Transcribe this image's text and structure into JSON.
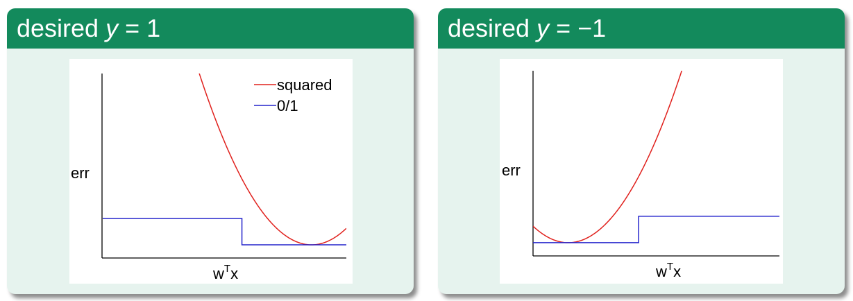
{
  "panels": [
    {
      "title_prefix": "desired ",
      "title_var": "y",
      "title_eq": " = ",
      "title_value": "1",
      "chart_data": {
        "type": "line",
        "xlabel_base": "w",
        "xlabel_sup": "T",
        "xlabel_tail": "x",
        "ylabel": "err",
        "legend": {
          "position": "top-right",
          "entries": [
            "squared",
            "0/1"
          ]
        },
        "xlim": [
          -2,
          1.5
        ],
        "ylim": [
          -0.2,
          2.6
        ],
        "series": [
          {
            "name": "squared",
            "color": "#e0201c",
            "function": "squared",
            "target": 1,
            "points": [
              [
                -0.8,
                3.24
              ],
              [
                -0.5,
                2.25
              ],
              [
                0,
                1
              ],
              [
                0.5,
                0.25
              ],
              [
                1,
                0
              ],
              [
                1.5,
                0.25
              ]
            ]
          },
          {
            "name": "0/1",
            "color": "#2424cc",
            "function": "zero_one",
            "target": 1,
            "points": [
              [
                -2,
                0.4
              ],
              [
                0,
                0.4
              ],
              [
                0,
                0
              ],
              [
                1.5,
                0
              ]
            ]
          }
        ]
      }
    },
    {
      "title_prefix": "desired ",
      "title_var": "y",
      "title_eq": " = ",
      "title_value": "−1",
      "chart_data": {
        "type": "line",
        "xlabel_base": "w",
        "xlabel_sup": "T",
        "xlabel_tail": "x",
        "ylabel": "err",
        "xlim": [
          -1.5,
          2
        ],
        "ylim": [
          -0.2,
          2.6
        ],
        "series": [
          {
            "name": "squared",
            "color": "#e0201c",
            "function": "squared",
            "target": -1,
            "points": [
              [
                -1.5,
                0.25
              ],
              [
                -1,
                0
              ],
              [
                0,
                1
              ],
              [
                0.5,
                2.25
              ],
              [
                0.8,
                3.24
              ]
            ]
          },
          {
            "name": "0/1",
            "color": "#2424cc",
            "function": "zero_one",
            "target": -1,
            "points": [
              [
                -1.5,
                0
              ],
              [
                0,
                0
              ],
              [
                0,
                0.4
              ],
              [
                2,
                0.4
              ]
            ]
          }
        ]
      }
    }
  ]
}
